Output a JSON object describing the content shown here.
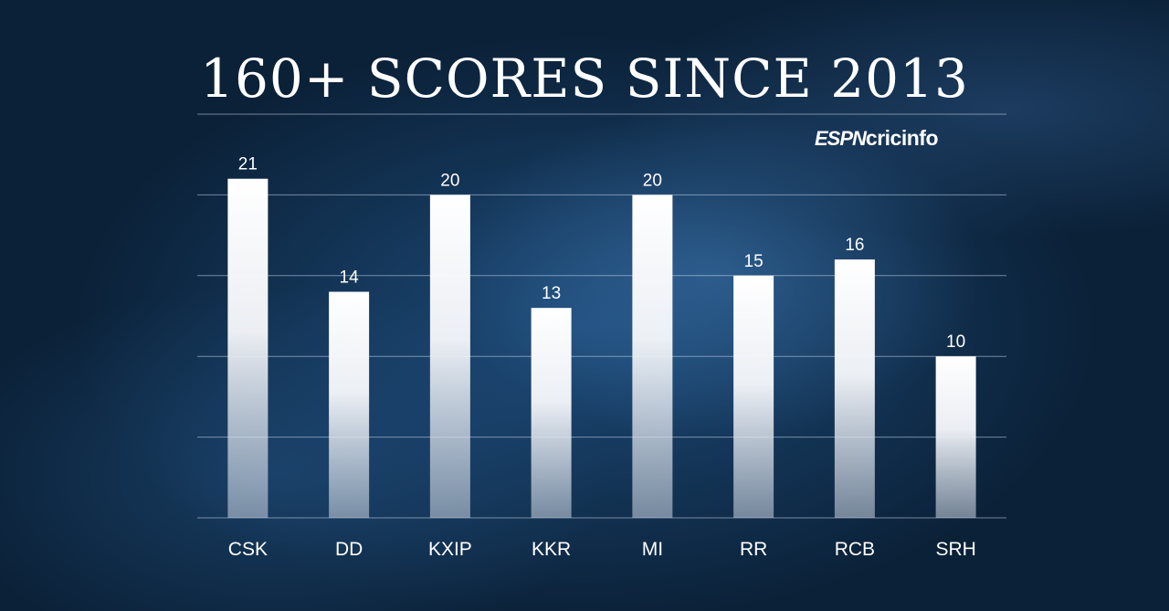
{
  "brand": {
    "espn": "ESPN",
    "cricinfo": "cricinfo"
  },
  "chart_data": {
    "type": "bar",
    "title": "160+ SCORES SINCE 2013",
    "categories": [
      "CSK",
      "DD",
      "KXIP",
      "KKR",
      "MI",
      "RR",
      "RCB",
      "SRH"
    ],
    "values": [
      21,
      14,
      20,
      13,
      20,
      15,
      16,
      10
    ],
    "ylim": [
      0,
      25
    ],
    "grid": true,
    "gridlines": [
      0,
      5,
      10,
      15,
      20,
      25
    ],
    "bar_color": "#ffffff",
    "background_color": "#15375c"
  }
}
